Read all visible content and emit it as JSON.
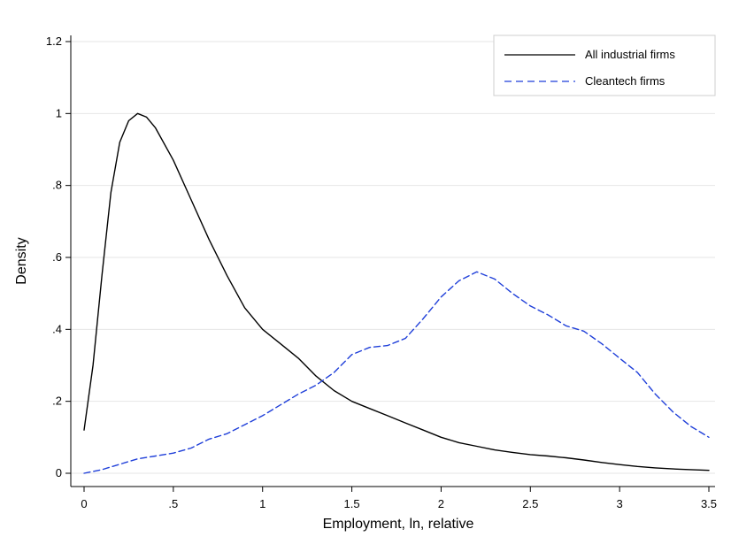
{
  "chart_data": {
    "type": "line",
    "xlabel": "Employment, ln, relative",
    "ylabel": "Density",
    "xlim": [
      0,
      3.5
    ],
    "ylim": [
      0,
      1.2
    ],
    "x_ticks": [
      {
        "value": 0,
        "label": "0"
      },
      {
        "value": 0.5,
        "label": ".5"
      },
      {
        "value": 1,
        "label": "1"
      },
      {
        "value": 1.5,
        "label": "1.5"
      },
      {
        "value": 2,
        "label": "2"
      },
      {
        "value": 2.5,
        "label": "2.5"
      },
      {
        "value": 3,
        "label": "3"
      },
      {
        "value": 3.5,
        "label": "3.5"
      }
    ],
    "y_ticks": [
      {
        "value": 0,
        "label": "0"
      },
      {
        "value": 0.2,
        "label": ".2"
      },
      {
        "value": 0.4,
        "label": ".4"
      },
      {
        "value": 0.6,
        "label": ".6"
      },
      {
        "value": 0.8,
        "label": ".8"
      },
      {
        "value": 1,
        "label": "1"
      },
      {
        "value": 1.2,
        "label": "1.2"
      }
    ],
    "grid": true,
    "legend_position": "top-right",
    "series": [
      {
        "name": "All industrial firms",
        "color": "#000000",
        "style": "solid",
        "x": [
          0.0,
          0.05,
          0.1,
          0.15,
          0.2,
          0.25,
          0.3,
          0.35,
          0.4,
          0.5,
          0.6,
          0.7,
          0.8,
          0.9,
          1.0,
          1.1,
          1.2,
          1.3,
          1.4,
          1.5,
          1.6,
          1.7,
          1.8,
          1.9,
          2.0,
          2.1,
          2.2,
          2.3,
          2.4,
          2.5,
          2.6,
          2.7,
          2.8,
          2.9,
          3.0,
          3.1,
          3.2,
          3.3,
          3.4,
          3.5
        ],
        "y": [
          0.12,
          0.3,
          0.55,
          0.78,
          0.92,
          0.98,
          1.0,
          0.99,
          0.96,
          0.87,
          0.76,
          0.65,
          0.55,
          0.46,
          0.4,
          0.36,
          0.32,
          0.27,
          0.23,
          0.2,
          0.18,
          0.16,
          0.14,
          0.12,
          0.1,
          0.085,
          0.075,
          0.065,
          0.058,
          0.052,
          0.048,
          0.043,
          0.037,
          0.03,
          0.024,
          0.019,
          0.015,
          0.012,
          0.01,
          0.008
        ]
      },
      {
        "name": "Cleantech firms",
        "color": "#1f3fd9",
        "style": "dashed",
        "x": [
          0.0,
          0.1,
          0.2,
          0.3,
          0.4,
          0.5,
          0.6,
          0.7,
          0.8,
          0.9,
          1.0,
          1.1,
          1.2,
          1.3,
          1.4,
          1.5,
          1.6,
          1.7,
          1.8,
          1.9,
          2.0,
          2.1,
          2.2,
          2.3,
          2.4,
          2.5,
          2.6,
          2.7,
          2.8,
          2.9,
          3.0,
          3.1,
          3.2,
          3.3,
          3.4,
          3.5
        ],
        "y": [
          0.0,
          0.01,
          0.025,
          0.04,
          0.048,
          0.056,
          0.07,
          0.095,
          0.11,
          0.135,
          0.16,
          0.19,
          0.22,
          0.245,
          0.28,
          0.33,
          0.35,
          0.355,
          0.375,
          0.43,
          0.49,
          0.535,
          0.56,
          0.54,
          0.5,
          0.465,
          0.44,
          0.41,
          0.395,
          0.36,
          0.32,
          0.28,
          0.22,
          0.17,
          0.13,
          0.1
        ]
      }
    ]
  }
}
